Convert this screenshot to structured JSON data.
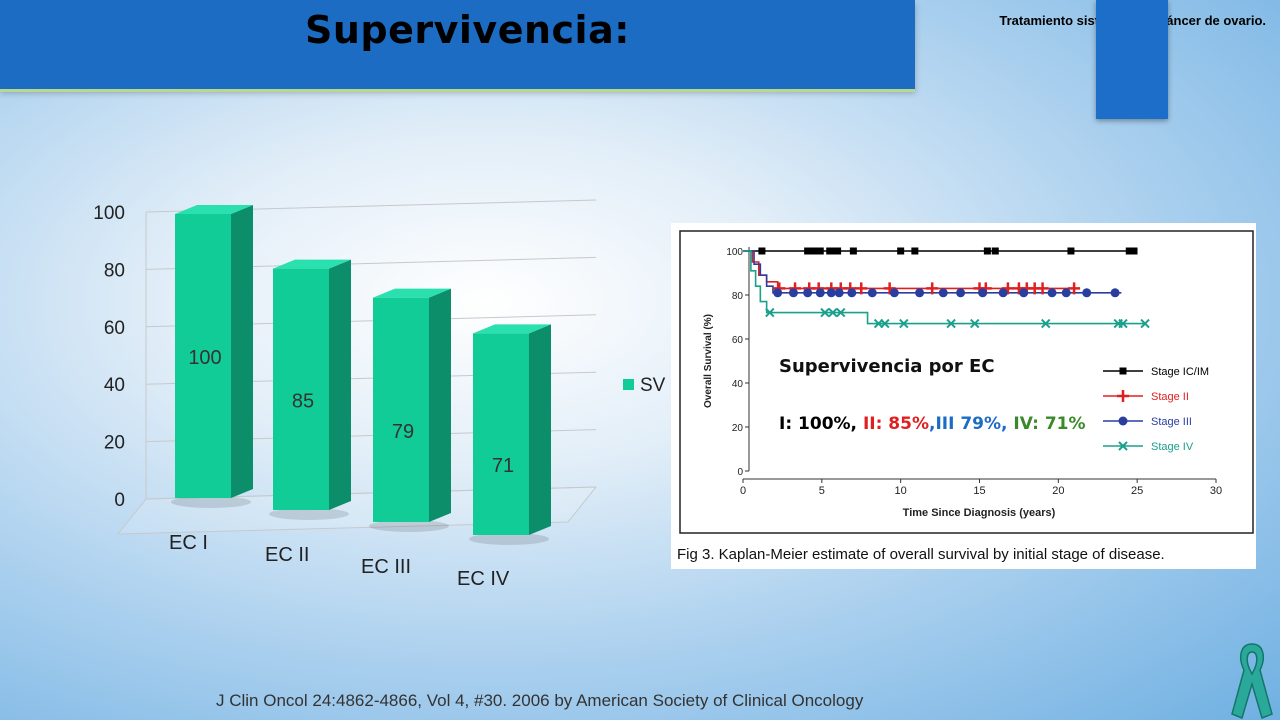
{
  "header": {
    "title": "Supervivencia:",
    "subtitle": "Tratamiento sistémico en cáncer de ovario."
  },
  "colors": {
    "bar_front": "#12cc98",
    "bar_side": "#0b8e69",
    "bar_top": "#2ae0ae",
    "header_blue": "#1c6cc4",
    "stage_i": "#000000",
    "stage_ii": "#e02020",
    "stage_iii": "#2a3ea0",
    "stage_iv": "#1aa08c"
  },
  "chart_data": [
    {
      "type": "bar",
      "categories": [
        "EC I",
        "EC II",
        "EC III",
        "EC IV"
      ],
      "series": [
        {
          "name": "SV",
          "values": [
            100,
            85,
            79,
            71
          ]
        }
      ],
      "ylim": [
        0,
        100
      ],
      "yticks": [
        "0",
        "20",
        "40",
        "60",
        "80",
        "100"
      ],
      "data_labels": [
        "100",
        "85",
        "79",
        "71"
      ],
      "legend": "SV",
      "legend_position": "right"
    },
    {
      "type": "line",
      "title": "Fig 3. Kaplan-Meier estimate of overall survival by initial stage of disease.",
      "xlabel": "Time Since Diagnosis (years)",
      "ylabel": "Overall Survival (%)",
      "xlim": [
        0,
        30
      ],
      "ylim": [
        0,
        100
      ],
      "xticks": [
        "0",
        "5",
        "10",
        "15",
        "20",
        "25",
        "30"
      ],
      "yticks": [
        "0",
        "20",
        "40",
        "60",
        "80",
        "100"
      ],
      "series": [
        {
          "name": "Stage IC/IM",
          "x": [
            0,
            25
          ],
          "y": [
            100,
            100
          ],
          "censor_x": [
            1.2,
            4.1,
            4.4,
            4.6,
            4.9,
            5.5,
            5.8,
            6.0,
            7.0,
            10.0,
            10.9,
            15.5,
            16.0,
            20.8,
            24.5,
            24.8
          ]
        },
        {
          "name": "Stage II",
          "x": [
            0,
            0.6,
            0.6,
            1.0,
            1.0,
            1.5,
            1.5,
            2.2,
            2.2,
            21
          ],
          "y": [
            100,
            100,
            95,
            95,
            89,
            89,
            86,
            86,
            83,
            83
          ],
          "censor_x": [
            2.3,
            3.3,
            4.2,
            4.8,
            5.6,
            6.2,
            6.8,
            7.5,
            9.3,
            12.0,
            15.0,
            15.4,
            16.8,
            17.5,
            18.0,
            18.5,
            19.0,
            21.0
          ]
        },
        {
          "name": "Stage III",
          "x": [
            0,
            0.7,
            0.7,
            1.1,
            1.1,
            1.5,
            1.5,
            1.9,
            1.9,
            24
          ],
          "y": [
            100,
            100,
            94,
            94,
            89,
            89,
            84,
            84,
            81,
            81
          ],
          "censor_x": [
            2.2,
            3.2,
            4.1,
            4.9,
            5.6,
            6.1,
            6.9,
            8.2,
            9.6,
            11.2,
            12.7,
            13.8,
            15.2,
            16.5,
            17.8,
            19.6,
            20.5,
            21.8,
            23.6
          ]
        },
        {
          "name": "Stage IV",
          "x": [
            0,
            0.5,
            0.5,
            0.8,
            0.8,
            1.1,
            1.1,
            1.5,
            1.5,
            7.9,
            7.9,
            25.5
          ],
          "y": [
            100,
            100,
            91,
            91,
            84,
            84,
            77,
            77,
            72,
            72,
            67,
            67
          ],
          "censor_x": [
            1.7,
            5.2,
            5.7,
            6.2,
            8.6,
            9.0,
            10.2,
            13.2,
            14.7,
            19.2,
            23.8,
            24.1,
            25.5
          ]
        }
      ],
      "overlay": {
        "heading": "Supervivencia por EC",
        "parts": [
          {
            "text": "I: 100%, ",
            "color": "#000000"
          },
          {
            "text": "II: 85%",
            "color": "#e02020"
          },
          {
            "text": ",III 79%, ",
            "color": "#1c6cc4"
          },
          {
            "text": "IV: 71%",
            "color": "#3a8a2a"
          }
        ]
      }
    }
  ],
  "footer": {
    "citation": "J Clin Oncol 24:4862-4866, Vol 4, #30.  2006 by American Society of Clinical Oncology"
  },
  "decor": {
    "ribbon_icon": "ovarian-cancer-ribbon-icon"
  }
}
